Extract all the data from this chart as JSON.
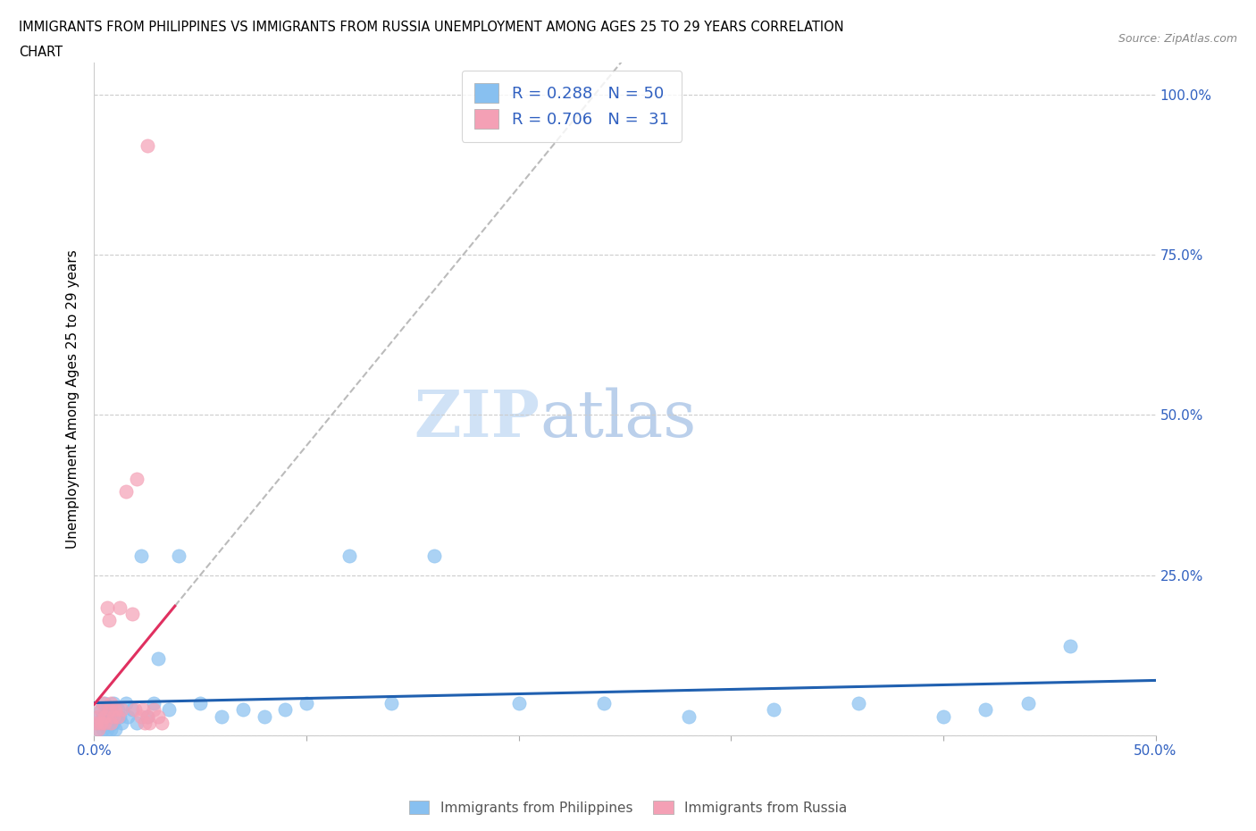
{
  "title_line1": "IMMIGRANTS FROM PHILIPPINES VS IMMIGRANTS FROM RUSSIA UNEMPLOYMENT AMONG AGES 25 TO 29 YEARS CORRELATION",
  "title_line2": "CHART",
  "source": "Source: ZipAtlas.com",
  "ylabel": "Unemployment Among Ages 25 to 29 years",
  "xlim": [
    0.0,
    0.5
  ],
  "ylim": [
    0.0,
    1.05
  ],
  "r_philippines": 0.288,
  "n_philippines": 50,
  "r_russia": 0.706,
  "n_russia": 31,
  "color_philippines": "#88C0F0",
  "color_russia": "#F4A0B5",
  "line_color_philippines": "#2060B0",
  "line_color_russia": "#E03060",
  "watermark_zip": "ZIP",
  "watermark_atlas": "atlas",
  "legend_label_philippines": "Immigrants from Philippines",
  "legend_label_russia": "Immigrants from Russia",
  "philippines_x": [
    0.001,
    0.002,
    0.002,
    0.003,
    0.003,
    0.004,
    0.004,
    0.005,
    0.005,
    0.006,
    0.006,
    0.007,
    0.007,
    0.008,
    0.008,
    0.009,
    0.009,
    0.01,
    0.01,
    0.011,
    0.012,
    0.013,
    0.015,
    0.016,
    0.018,
    0.02,
    0.022,
    0.025,
    0.028,
    0.03,
    0.035,
    0.04,
    0.05,
    0.06,
    0.07,
    0.08,
    0.09,
    0.1,
    0.12,
    0.14,
    0.16,
    0.2,
    0.24,
    0.28,
    0.32,
    0.36,
    0.4,
    0.42,
    0.44,
    0.46
  ],
  "philippines_y": [
    0.02,
    0.03,
    0.01,
    0.04,
    0.02,
    0.03,
    0.01,
    0.05,
    0.02,
    0.04,
    0.01,
    0.03,
    0.02,
    0.04,
    0.01,
    0.05,
    0.02,
    0.03,
    0.01,
    0.04,
    0.03,
    0.02,
    0.05,
    0.03,
    0.04,
    0.02,
    0.28,
    0.03,
    0.05,
    0.12,
    0.04,
    0.28,
    0.05,
    0.03,
    0.04,
    0.03,
    0.04,
    0.05,
    0.28,
    0.05,
    0.28,
    0.05,
    0.05,
    0.03,
    0.04,
    0.05,
    0.03,
    0.04,
    0.05,
    0.14
  ],
  "russia_x": [
    0.001,
    0.002,
    0.002,
    0.003,
    0.003,
    0.004,
    0.005,
    0.005,
    0.006,
    0.007,
    0.007,
    0.008,
    0.008,
    0.009,
    0.01,
    0.011,
    0.012,
    0.013,
    0.015,
    0.018,
    0.019,
    0.02,
    0.022,
    0.023,
    0.024,
    0.025,
    0.026,
    0.028,
    0.03,
    0.032,
    0.025
  ],
  "russia_y": [
    0.02,
    0.03,
    0.01,
    0.04,
    0.02,
    0.05,
    0.03,
    0.02,
    0.2,
    0.18,
    0.04,
    0.05,
    0.02,
    0.03,
    0.04,
    0.03,
    0.2,
    0.04,
    0.38,
    0.19,
    0.04,
    0.4,
    0.03,
    0.04,
    0.02,
    0.03,
    0.02,
    0.04,
    0.03,
    0.02,
    0.92
  ]
}
